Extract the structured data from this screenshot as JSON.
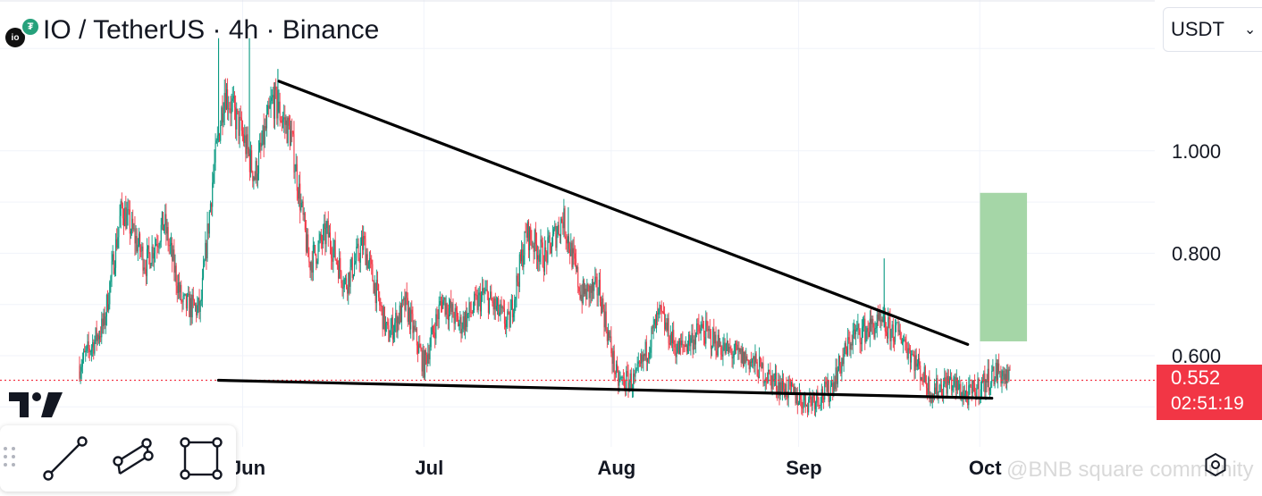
{
  "header": {
    "title": "IO / TetherUS · 4h · Binance",
    "base_icon": "io-coin-icon",
    "base_icon_text": "io",
    "quote_icon": "tether-icon",
    "quote_icon_text": "₮"
  },
  "currency_select": {
    "value": "USDT",
    "icon": "chevron-down-icon"
  },
  "price_label": {
    "price": "0.552",
    "countdown": "02:51:19",
    "color": "#f23645"
  },
  "toolbar": {
    "tools": [
      "trend-line-icon",
      "parallel-channel-icon",
      "rectangle-icon"
    ]
  },
  "watermark": {
    "text": "@BNB square community"
  },
  "colors": {
    "up": "#089981",
    "down": "#f23645",
    "target_box": "#a5d6a7",
    "trendline": "#000000"
  },
  "chart_data": {
    "type": "candlestick",
    "y_axis": {
      "ticks": [
        "0.600",
        "0.800",
        "1.000"
      ],
      "position": "right"
    },
    "x_axis": {
      "ticks": [
        "Jun",
        "Jul",
        "Aug",
        "Sep",
        "Oct"
      ]
    },
    "last_price": 0.552,
    "price_path": [
      {
        "d": "May 05",
        "v": 0.58
      },
      {
        "d": "May 09",
        "v": 0.66
      },
      {
        "d": "May 12",
        "v": 0.89
      },
      {
        "d": "May 16",
        "v": 0.78
      },
      {
        "d": "May 19",
        "v": 0.86
      },
      {
        "d": "May 22",
        "v": 0.7
      },
      {
        "d": "May 25",
        "v": 0.69
      },
      {
        "d": "May 27",
        "v": 0.94
      },
      {
        "d": "May 29",
        "v": 1.12
      },
      {
        "d": "Jun 01",
        "v": 1.03
      },
      {
        "d": "Jun 03",
        "v": 0.95
      },
      {
        "d": "Jun 06",
        "v": 1.1
      },
      {
        "d": "Jun 09",
        "v": 1.03
      },
      {
        "d": "Jun 12",
        "v": 0.78
      },
      {
        "d": "Jun 15",
        "v": 0.84
      },
      {
        "d": "Jun 18",
        "v": 0.74
      },
      {
        "d": "Jun 21",
        "v": 0.82
      },
      {
        "d": "Jun 25",
        "v": 0.64
      },
      {
        "d": "Jun 28",
        "v": 0.7
      },
      {
        "d": "Jul 01",
        "v": 0.58
      },
      {
        "d": "Jul 04",
        "v": 0.71
      },
      {
        "d": "Jul 07",
        "v": 0.66
      },
      {
        "d": "Jul 11",
        "v": 0.72
      },
      {
        "d": "Jul 15",
        "v": 0.66
      },
      {
        "d": "Jul 18",
        "v": 0.84
      },
      {
        "d": "Jul 21",
        "v": 0.79
      },
      {
        "d": "Jul 24",
        "v": 0.87
      },
      {
        "d": "Jul 27",
        "v": 0.72
      },
      {
        "d": "Jul 30",
        "v": 0.73
      },
      {
        "d": "Aug 02",
        "v": 0.55
      },
      {
        "d": "Aug 05",
        "v": 0.55
      },
      {
        "d": "Aug 09",
        "v": 0.68
      },
      {
        "d": "Aug 12",
        "v": 0.61
      },
      {
        "d": "Aug 16",
        "v": 0.65
      },
      {
        "d": "Aug 20",
        "v": 0.61
      },
      {
        "d": "Aug 24",
        "v": 0.59
      },
      {
        "d": "Aug 28",
        "v": 0.55
      },
      {
        "d": "Sep 02",
        "v": 0.51
      },
      {
        "d": "Sep 06",
        "v": 0.53
      },
      {
        "d": "Sep 10",
        "v": 0.64
      },
      {
        "d": "Sep 14",
        "v": 0.66
      },
      {
        "d": "Sep 18",
        "v": 0.64
      },
      {
        "d": "Sep 23",
        "v": 0.53
      },
      {
        "d": "Sep 26",
        "v": 0.55
      },
      {
        "d": "Sep 29",
        "v": 0.52
      },
      {
        "d": "Oct 01",
        "v": 0.54
      },
      {
        "d": "Oct 04",
        "v": 0.57
      },
      {
        "d": "Oct 06",
        "v": 0.55
      }
    ],
    "spikes": [
      {
        "d": "May 28",
        "high": 1.22
      },
      {
        "d": "Jun 02",
        "high": 1.22
      },
      {
        "d": "Jun 07",
        "high": 1.16
      },
      {
        "d": "Jul 25",
        "high": 0.89
      },
      {
        "d": "Sep 15",
        "high": 0.79
      },
      {
        "d": "Sep 15",
        "high": 0.7
      }
    ],
    "drawings": [
      {
        "type": "trendline",
        "from": {
          "d": "Jun 07",
          "v": 1.136
        },
        "to": {
          "d": "Sep 29",
          "v": 0.622
        }
      },
      {
        "type": "trendline",
        "from": {
          "d": "May 28",
          "v": 0.552
        },
        "to": {
          "d": "Oct 03",
          "v": 0.517
        }
      },
      {
        "type": "rectangle",
        "from": {
          "d": "Oct 04",
          "v": 0.918
        },
        "to": {
          "d": "Oct 10",
          "v": 0.628
        }
      },
      {
        "type": "horizontal_dotted",
        "v": 0.552
      }
    ]
  }
}
